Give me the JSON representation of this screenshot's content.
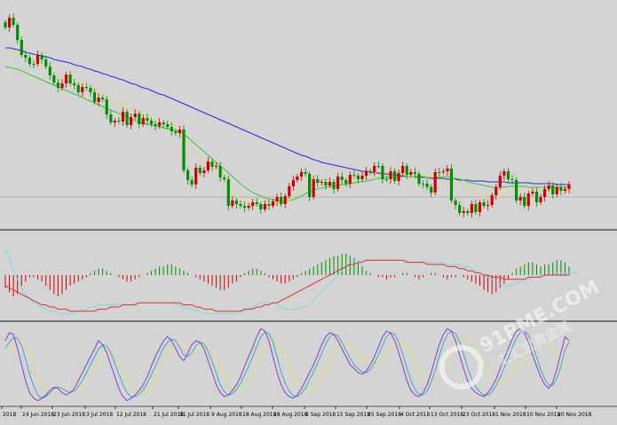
{
  "watermark": {
    "main": "91PME.COM",
    "sub": "汇汇宝贵金属"
  },
  "colors": {
    "bull": "#d00000",
    "bear": "#009000",
    "ma_fast": "#e8d870",
    "ma_mid": "#39c639",
    "ma_slow": "#2a2ad8",
    "macd_signal": "#e03030",
    "macd_line": "#7fd8e0",
    "stoch_k": "#8a3ccf",
    "stoch_d": "#3fa8c0",
    "stoch_slow": "#e8e070"
  },
  "chart_data": [
    {
      "type": "candlestick",
      "panel": "price",
      "title": "",
      "x_labels": [
        "2018",
        "14 Jun 2018",
        "23 Jun 2018",
        "3 Jul 2018",
        "12 Jul 2018",
        "21 Jul 2018",
        "31 Jul 2018",
        "9 Aug 2018",
        "18 Aug 2018",
        "28 Aug 2018",
        "6 Sep 2018",
        "15 Sep 2018",
        "25 Sep 2018",
        "4 Oct 2018",
        "13 Oct 2018",
        "23 Oct 2018",
        "1 Nov 2018",
        "10 Nov 2018",
        "20 Nov 2018"
      ],
      "close": [
        31,
        20,
        28,
        45,
        62,
        65,
        72,
        72,
        62,
        67,
        75,
        85,
        93,
        99,
        94,
        84,
        94,
        96,
        104,
        98,
        99,
        104,
        115,
        110,
        112,
        129,
        138,
        136,
        137,
        126,
        141,
        132,
        128,
        140,
        133,
        136,
        140,
        142,
        138,
        140,
        143,
        148,
        150,
        146,
        192,
        203,
        208,
        189,
        195,
        192,
        182,
        188,
        187,
        200,
        202,
        232,
        226,
        230,
        232,
        234,
        232,
        228,
        230,
        236,
        230,
        232,
        227,
        222,
        230,
        221,
        210,
        203,
        199,
        194,
        196,
        222,
        202,
        206,
        205,
        209,
        205,
        213,
        199,
        203,
        207,
        197,
        198,
        202,
        198,
        193,
        194,
        187,
        187,
        202,
        202,
        193,
        204,
        195,
        187,
        197,
        194,
        196,
        207,
        207,
        211,
        217,
        194,
        194,
        193,
        190,
        226,
        231,
        240,
        238,
        240,
        230,
        239,
        228,
        232,
        231,
        220,
        211,
        198,
        193,
        202,
        203,
        226,
        222,
        232,
        218,
        216,
        228,
        222,
        213,
        209,
        219,
        211,
        215,
        213,
        208
      ],
      "ma_fast": [
        59,
        58,
        59,
        60,
        63,
        65,
        68,
        70,
        71,
        73,
        76,
        79,
        82,
        85,
        87,
        89,
        91,
        93,
        95,
        96,
        98,
        99,
        101,
        103,
        105,
        108,
        111,
        114,
        117,
        119,
        121,
        123,
        125,
        127,
        129,
        131,
        133,
        135,
        136,
        137,
        139,
        141,
        143,
        145,
        151,
        158,
        166,
        171,
        177,
        182,
        186,
        190,
        193,
        198,
        202,
        210,
        215,
        221,
        224,
        227,
        228,
        229,
        230,
        232,
        231,
        231,
        230,
        229,
        229,
        228,
        226,
        222,
        218,
        213,
        209,
        209,
        206,
        205,
        205,
        205,
        206,
        208,
        206,
        205,
        205,
        203,
        202,
        201,
        200,
        198,
        197,
        195,
        193,
        194,
        195,
        195,
        196,
        196,
        195,
        195,
        195,
        195,
        196,
        197,
        198,
        200,
        199,
        199,
        198,
        197,
        200,
        203,
        206,
        210,
        214,
        216,
        218,
        220,
        222,
        224,
        224,
        223,
        221,
        218,
        216,
        214,
        214,
        214,
        215,
        214,
        213,
        214,
        215,
        215,
        215,
        215,
        215,
        215,
        215,
        214
      ],
      "ma_mid": [
        75,
        76,
        77,
        78,
        80,
        82,
        84,
        86,
        88,
        90,
        92,
        94,
        96,
        98,
        100,
        102,
        104,
        106,
        108,
        110,
        112,
        114,
        116,
        118,
        120,
        122,
        124,
        126,
        128,
        130,
        132,
        134,
        136,
        138,
        139,
        140,
        141,
        142,
        143,
        144,
        145,
        146,
        147,
        148,
        151,
        155,
        159,
        163,
        167,
        171,
        175,
        179,
        183,
        187,
        191,
        195,
        199,
        203,
        207,
        211,
        214,
        217,
        219,
        221,
        223,
        224,
        225,
        226,
        227,
        227,
        226,
        225,
        223,
        221,
        218,
        216,
        214,
        213,
        212,
        211,
        210,
        210,
        209,
        208,
        208,
        207,
        206,
        205,
        205,
        204,
        203,
        202,
        201,
        201,
        200,
        200,
        200,
        200,
        199,
        199,
        199,
        199,
        199,
        199,
        200,
        200,
        200,
        200,
        199,
        199,
        200,
        201,
        202,
        203,
        205,
        206,
        207,
        208,
        209,
        210,
        211,
        211,
        211,
        211,
        210,
        210,
        210,
        210,
        210,
        211,
        211,
        211,
        211,
        211,
        211,
        211,
        211,
        211,
        211,
        211
      ],
      "ma_slow": [
        54,
        54,
        55,
        56,
        57,
        59,
        60,
        61,
        62,
        63,
        64,
        65,
        67,
        68,
        69,
        70,
        71,
        73,
        74,
        75,
        77,
        78,
        80,
        81,
        83,
        84,
        86,
        87,
        89,
        90,
        92,
        94,
        95,
        97,
        99,
        100,
        102,
        104,
        106,
        107,
        109,
        111,
        113,
        115,
        117,
        119,
        121,
        123,
        125,
        127,
        129,
        131,
        133,
        135,
        137,
        139,
        141,
        143,
        145,
        147,
        149,
        151,
        153,
        155,
        157,
        159,
        161,
        163,
        165,
        167,
        169,
        171,
        173,
        175,
        176,
        178,
        180,
        181,
        183,
        184,
        185,
        186,
        187,
        188,
        189,
        190,
        191,
        192,
        193,
        193,
        194,
        195,
        195,
        196,
        196,
        197,
        197,
        198,
        198,
        199,
        199,
        199,
        200,
        200,
        200,
        201,
        201,
        201,
        201,
        202,
        202,
        202,
        203,
        203,
        203,
        204,
        204,
        204,
        204,
        205,
        205,
        205,
        205,
        205,
        206,
        206,
        206,
        206,
        206,
        206,
        207,
        207,
        207,
        207,
        207,
        207,
        208,
        208,
        208,
        208
      ]
    },
    {
      "type": "bar+line",
      "panel": "macd",
      "histogram": [
        -6,
        -8,
        -10,
        -9,
        -5,
        -3,
        -1,
        -1,
        -2,
        -3,
        -5,
        -7,
        -9,
        -10,
        -9,
        -7,
        -5,
        -4,
        -3,
        -2,
        -1,
        1,
        2,
        3,
        3,
        2,
        1,
        0,
        -1,
        -2,
        -3,
        -3,
        -2,
        -1,
        0,
        1,
        2,
        3,
        4,
        4,
        5,
        5,
        4,
        3,
        2,
        1,
        0,
        -1,
        -2,
        -3,
        -4,
        -5,
        -6,
        -7,
        -7,
        -6,
        -4,
        -3,
        -1,
        1,
        2,
        3,
        3,
        2,
        1,
        -1,
        -2,
        -3,
        -4,
        -4,
        -3,
        -2,
        -1,
        1,
        2,
        3,
        4,
        5,
        6,
        7,
        8,
        9,
        9,
        10,
        10,
        9,
        8,
        6,
        4,
        2,
        1,
        0,
        -1,
        -1,
        -2,
        -1,
        -1,
        0,
        1,
        1,
        0,
        -1,
        -2,
        -1,
        0,
        1,
        1,
        0,
        -1,
        -2,
        -1,
        -1,
        0,
        -1,
        -2,
        -3,
        -4,
        -5,
        -7,
        -8,
        -9,
        -8,
        -6,
        -4,
        -2,
        1,
        3,
        4,
        5,
        6,
        6,
        5,
        4,
        5,
        5,
        6,
        7,
        7,
        6,
        4
      ],
      "signal": [
        -5,
        -6,
        -7,
        -8,
        -9,
        -10,
        -11,
        -12,
        -13,
        -14,
        -14,
        -15,
        -15,
        -16,
        -16,
        -16,
        -17,
        -17,
        -17,
        -17,
        -17,
        -17,
        -17,
        -16,
        -16,
        -16,
        -15,
        -15,
        -15,
        -14,
        -14,
        -14,
        -14,
        -13,
        -13,
        -13,
        -13,
        -13,
        -13,
        -13,
        -13,
        -13,
        -13,
        -13,
        -14,
        -14,
        -14,
        -15,
        -15,
        -16,
        -16,
        -16,
        -17,
        -17,
        -17,
        -17,
        -17,
        -17,
        -17,
        -16,
        -16,
        -16,
        -15,
        -15,
        -14,
        -14,
        -13,
        -13,
        -12,
        -11,
        -10,
        -9,
        -8,
        -7,
        -6,
        -5,
        -4,
        -3,
        -2,
        -1,
        0,
        1,
        2,
        3,
        4,
        5,
        5,
        6,
        6,
        7,
        7,
        7,
        7,
        7,
        7,
        7,
        7,
        7,
        7,
        6,
        6,
        6,
        6,
        6,
        5,
        5,
        5,
        5,
        5,
        4,
        4,
        4,
        3,
        3,
        2,
        2,
        1,
        1,
        0,
        0,
        -1,
        -1,
        -1,
        -2,
        -2,
        -2,
        -2,
        -2,
        -2,
        -1,
        -1,
        -1,
        -1,
        0,
        0,
        0,
        0,
        0,
        0,
        0
      ],
      "macd": [
        12,
        8,
        3,
        -2,
        -6,
        -9,
        -11,
        -13,
        -14,
        -15,
        -16,
        -17,
        -17,
        -18,
        -18,
        -18,
        -18,
        -18,
        -17,
        -17,
        -16,
        -15,
        -15,
        -14,
        -14,
        -14,
        -14,
        -14,
        -14,
        -14,
        -14,
        -14,
        -13,
        -13,
        -13,
        -13,
        -13,
        -13,
        -13,
        -13,
        -13,
        -13,
        -14,
        -14,
        -15,
        -16,
        -16,
        -17,
        -17,
        -18,
        -18,
        -18,
        -18,
        -18,
        -18,
        -18,
        -18,
        -18,
        -17,
        -17,
        -16,
        -15,
        -14,
        -13,
        -13,
        -13,
        -13,
        -14,
        -15,
        -16,
        -16,
        -16,
        -16,
        -15,
        -15,
        -14,
        -12,
        -10,
        -8,
        -6,
        -4,
        -2,
        0,
        2,
        4,
        6,
        7,
        7,
        7,
        7,
        7,
        7,
        7,
        7,
        7,
        7,
        7,
        7,
        7,
        7,
        6,
        6,
        6,
        6,
        6,
        6,
        6,
        6,
        6,
        5,
        5,
        5,
        5,
        4,
        4,
        3,
        2,
        1,
        0,
        -1,
        -2,
        -3,
        -4,
        -5,
        -5,
        -5,
        -4,
        -3,
        -2,
        -2,
        -1,
        -1,
        0,
        0,
        0,
        0,
        1,
        1,
        1,
        1,
        1,
        1
      ]
    },
    {
      "type": "line",
      "panel": "stochastic",
      "k": [
        80,
        90,
        88,
        70,
        50,
        30,
        15,
        8,
        5,
        8,
        12,
        18,
        22,
        20,
        15,
        12,
        15,
        20,
        30,
        40,
        50,
        60,
        70,
        80,
        75,
        65,
        50,
        35,
        20,
        10,
        5,
        8,
        12,
        18,
        25,
        35,
        48,
        60,
        70,
        80,
        85,
        80,
        70,
        60,
        55,
        65,
        75,
        80,
        78,
        70,
        55,
        40,
        25,
        15,
        10,
        12,
        18,
        25,
        35,
        48,
        60,
        72,
        85,
        95,
        92,
        80,
        60,
        40,
        25,
        15,
        10,
        8,
        12,
        20,
        30,
        40,
        50,
        62,
        75,
        85,
        90,
        88,
        80,
        70,
        60,
        50,
        45,
        40,
        38,
        42,
        50,
        60,
        72,
        85,
        92,
        90,
        80,
        65,
        48,
        30,
        18,
        12,
        10,
        15,
        25,
        40,
        58,
        75,
        88,
        95,
        92,
        80,
        62,
        45,
        30,
        20,
        15,
        12,
        10,
        15,
        22,
        32,
        45,
        58,
        70,
        82,
        92,
        95,
        90,
        78,
        62,
        48,
        35,
        25,
        20,
        28,
        45,
        65,
        85,
        80
      ],
      "d": [
        70,
        78,
        84,
        83,
        74,
        57,
        38,
        23,
        12,
        8,
        10,
        15,
        20,
        22,
        20,
        17,
        15,
        17,
        22,
        30,
        40,
        50,
        60,
        70,
        75,
        73,
        65,
        52,
        38,
        25,
        15,
        10,
        10,
        13,
        19,
        27,
        37,
        48,
        60,
        71,
        78,
        82,
        80,
        72,
        62,
        60,
        65,
        74,
        78,
        76,
        67,
        54,
        39,
        25,
        16,
        12,
        14,
        19,
        27,
        37,
        48,
        60,
        73,
        85,
        91,
        89,
        78,
        60,
        41,
        27,
        17,
        11,
        10,
        14,
        21,
        31,
        41,
        52,
        64,
        76,
        85,
        88,
        86,
        78,
        68,
        58,
        50,
        45,
        41,
        40,
        44,
        52,
        62,
        74,
        85,
        90,
        88,
        78,
        63,
        46,
        30,
        19,
        13,
        12,
        17,
        28,
        43,
        61,
        77,
        88,
        92,
        89,
        79,
        63,
        46,
        32,
        22,
        16,
        12,
        12,
        16,
        24,
        34,
        46,
        58,
        71,
        83,
        91,
        93,
        87,
        74,
        59,
        44,
        32,
        24,
        24,
        33,
        48,
        68,
        78
      ],
      "slow": [
        65,
        70,
        76,
        80,
        80,
        75,
        65,
        52,
        38,
        26,
        18,
        15,
        17,
        19,
        20,
        19,
        18,
        17,
        18,
        21,
        27,
        35,
        44,
        53,
        61,
        66,
        67,
        63,
        55,
        45,
        34,
        24,
        17,
        14,
        15,
        18,
        24,
        32,
        42,
        52,
        62,
        70,
        76,
        78,
        75,
        70,
        67,
        68,
        71,
        73,
        72,
        66,
        57,
        46,
        35,
        26,
        20,
        18,
        20,
        24,
        31,
        40,
        50,
        61,
        71,
        79,
        82,
        79,
        71,
        59,
        46,
        35,
        25,
        19,
        16,
        18,
        22,
        28,
        36,
        45,
        55,
        64,
        72,
        77,
        78,
        75,
        70,
        64,
        58,
        54,
        51,
        51,
        53,
        57,
        64,
        71,
        77,
        80,
        79,
        74,
        66,
        55,
        44,
        34,
        28,
        25,
        28,
        35,
        45,
        56,
        66,
        75,
        82,
        85,
        84,
        79,
        71,
        62,
        52,
        43,
        35,
        30,
        27,
        28,
        31,
        37,
        44,
        52,
        60,
        67,
        73,
        78,
        80,
        79,
        76,
        71,
        64,
        57,
        51,
        50
      ]
    }
  ]
}
